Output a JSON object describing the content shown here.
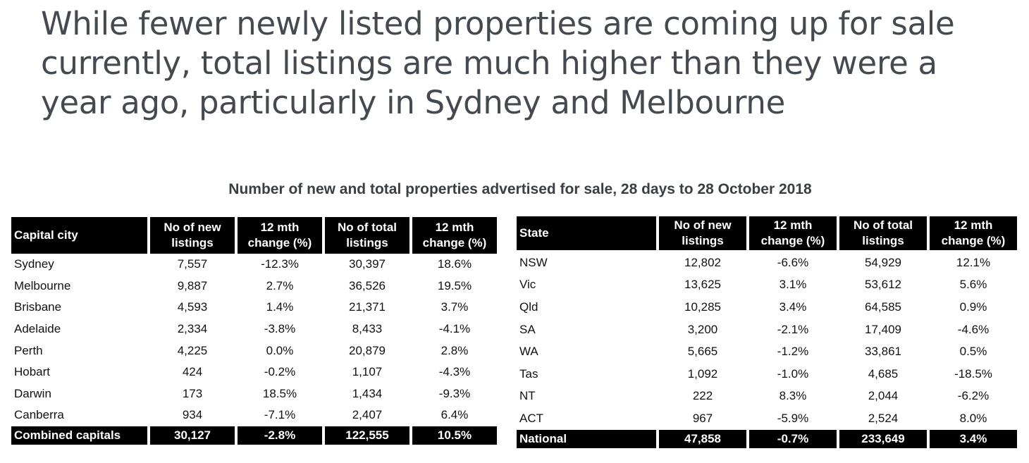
{
  "headline": {
    "lines": [
      "While fewer newly listed properties are coming up for sale",
      "currently, total listings are much higher than they were a",
      "year ago, particularly in Sydney and Melbourne"
    ]
  },
  "subtitle": "Number of new and total properties advertised for sale, 28 days to 28 October 2018",
  "capitals_table": {
    "headers": [
      "Capital city",
      "No of new listings",
      "12 mth change (%)",
      "No of total listings",
      "12 mth change (%)"
    ],
    "rows": [
      [
        "Sydney",
        "7,557",
        "-12.3%",
        "30,397",
        "18.6%"
      ],
      [
        "Melbourne",
        "9,887",
        "2.7%",
        "36,526",
        "19.5%"
      ],
      [
        "Brisbane",
        "4,593",
        "1.4%",
        "21,371",
        "3.7%"
      ],
      [
        "Adelaide",
        "2,334",
        "-3.8%",
        "8,433",
        "-4.1%"
      ],
      [
        "Perth",
        "4,225",
        "0.0%",
        "20,879",
        "2.8%"
      ],
      [
        "Hobart",
        "424",
        "-0.2%",
        "1,107",
        "-4.3%"
      ],
      [
        "Darwin",
        "173",
        "18.5%",
        "1,434",
        "-9.3%"
      ],
      [
        "Canberra",
        "934",
        "-7.1%",
        "2,407",
        "6.4%"
      ]
    ],
    "total": [
      "Combined capitals",
      "30,127",
      "-2.8%",
      "122,555",
      "10.5%"
    ]
  },
  "states_table": {
    "headers": [
      "State",
      "No of new listings",
      "12 mth change (%)",
      "No of total listings",
      "12 mth change (%)"
    ],
    "rows": [
      [
        "NSW",
        "12,802",
        "-6.6%",
        "54,929",
        "12.1%"
      ],
      [
        "Vic",
        "13,625",
        "3.1%",
        "53,612",
        "5.6%"
      ],
      [
        "Qld",
        "10,285",
        "3.4%",
        "64,585",
        "0.9%"
      ],
      [
        "SA",
        "3,200",
        "-2.1%",
        "17,409",
        "-4.6%"
      ],
      [
        "WA",
        "5,665",
        "-1.2%",
        "33,861",
        "0.5%"
      ],
      [
        "Tas",
        "1,092",
        "-1.0%",
        "4,685",
        "-18.5%"
      ],
      [
        "NT",
        "222",
        "8.3%",
        "2,044",
        "-6.2%"
      ],
      [
        "ACT",
        "967",
        "-5.9%",
        "2,524",
        "8.0%"
      ]
    ],
    "total": [
      "National",
      "47,858",
      "-0.7%",
      "233,649",
      "3.4%"
    ]
  }
}
